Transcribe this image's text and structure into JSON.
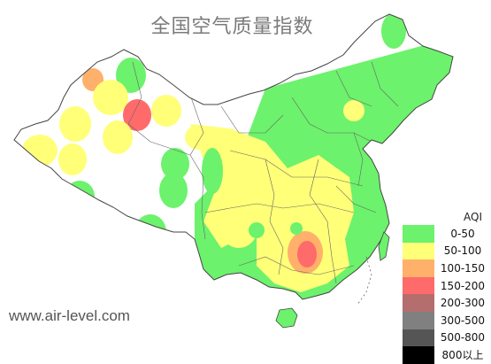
{
  "title": "全国空气质量指数",
  "source": "www.air-level.com",
  "legend": {
    "title": "AQI",
    "items": [
      {
        "label": "0-50",
        "color": "#6cf26c"
      },
      {
        "label": "50-100",
        "color": "#ffff78"
      },
      {
        "label": "100-150",
        "color": "#ffb06a"
      },
      {
        "label": "150-200",
        "color": "#ff6a6a"
      },
      {
        "label": "200-300",
        "color": "#b46e6e"
      },
      {
        "label": "300-500",
        "color": "#808080"
      },
      {
        "label": "500-800",
        "color": "#555555"
      },
      {
        "label": "800以上",
        "color": "#000000"
      }
    ]
  },
  "map": {
    "region": "China",
    "land_color": "#ffffff",
    "border_color": "#555555"
  }
}
